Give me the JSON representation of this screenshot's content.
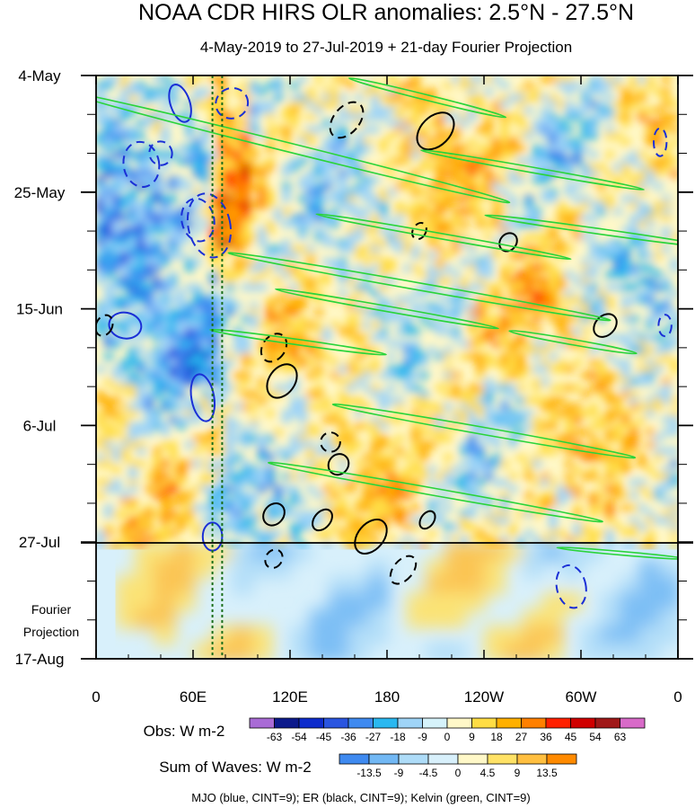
{
  "chart_data": {
    "type": "heatmap",
    "title": "NOAA CDR HIRS OLR anomalies: 2.5°N - 27.5°N",
    "subtitle": "4-May-2019 to 27-Jul-2019 + 21-day Fourier Projection",
    "x_ticks": [
      "0",
      "60E",
      "120E",
      "180",
      "120W",
      "60W",
      "0"
    ],
    "x_tick_lon": [
      0,
      60,
      120,
      180,
      240,
      300,
      360
    ],
    "y_ticks": [
      "4-May",
      "25-May",
      "15-Jun",
      "6-Jul",
      "27-Jul",
      "17-Aug"
    ],
    "y_tick_day": [
      0,
      21,
      42,
      63,
      84,
      105
    ],
    "obs_end_day": 84,
    "projection_label_1": "Fourier",
    "projection_label_2": "Projection",
    "obs_legend": {
      "label": "Obs: W m-2",
      "levels": [
        "-63",
        "-54",
        "-45",
        "-36",
        "-27",
        "-18",
        "-9",
        "0",
        "9",
        "18",
        "27",
        "36",
        "45",
        "54",
        "63"
      ],
      "colors": [
        "#a96bd6",
        "#0c1a8c",
        "#0e2ccc",
        "#2a55e0",
        "#3f8af0",
        "#2ab8f0",
        "#9fd4f7",
        "#d6f3fb",
        "#fff8c8",
        "#ffdd44",
        "#ffb000",
        "#ff8000",
        "#ff2000",
        "#d00000",
        "#a01818",
        "#d86ac8"
      ]
    },
    "waves_legend": {
      "label": "Sum of Waves: W m-2",
      "levels": [
        "-13.5",
        "-9",
        "-4.5",
        "0",
        "4.5",
        "9",
        "13.5"
      ],
      "colors": [
        "#3f8af0",
        "#72b8f4",
        "#aedcf8",
        "#d8f0fb",
        "#fff8c8",
        "#ffe266",
        "#ffbf40",
        "#ff8a00"
      ]
    },
    "footnote": "MJO (blue, CINT=9); ER (black, CINT=9); Kelvin (green, CINT=9)",
    "reference_lon": [
      72,
      78
    ],
    "contours": [
      {
        "wave": "MJO",
        "sign": "neg",
        "lon": 28,
        "day": 16,
        "a": 11,
        "b": 42,
        "rot": -10
      },
      {
        "wave": "MJO",
        "sign": "neg",
        "lon": 63,
        "day": 26,
        "a": 10,
        "b": 40,
        "rot": -12
      },
      {
        "wave": "MJO",
        "sign": "neg",
        "lon": 70,
        "day": 27,
        "a": 13,
        "b": 60,
        "rot": -12
      },
      {
        "wave": "MJO",
        "sign": "neg",
        "lon": 40,
        "day": 14,
        "a": 7,
        "b": 22,
        "rot": -15
      },
      {
        "wave": "MJO",
        "sign": "neg",
        "lon": 84,
        "day": 5,
        "a": 10,
        "b": 28,
        "rot": -18
      },
      {
        "wave": "MJO",
        "sign": "neg",
        "lon": 349,
        "day": 12,
        "a": 4,
        "b": 26,
        "rot": 0
      },
      {
        "wave": "MJO",
        "sign": "neg",
        "lon": 352,
        "day": 45,
        "a": 4,
        "b": 20,
        "rot": 0
      },
      {
        "wave": "MJO",
        "sign": "neg",
        "lon": 294,
        "day": 92,
        "a": 9,
        "b": 40,
        "rot": -12
      },
      {
        "wave": "MJO",
        "sign": "pos",
        "lon": 52,
        "day": 5,
        "a": 6,
        "b": 36,
        "rot": -18
      },
      {
        "wave": "MJO",
        "sign": "pos",
        "lon": 66,
        "day": 58,
        "a": 7,
        "b": 44,
        "rot": -10
      },
      {
        "wave": "MJO",
        "sign": "pos",
        "lon": 18,
        "day": 45,
        "a": 10,
        "b": 24,
        "rot": 10
      },
      {
        "wave": "MJO",
        "sign": "pos",
        "lon": 72,
        "day": 83,
        "a": 6,
        "b": 26,
        "rot": 0
      },
      {
        "wave": "ER",
        "sign": "neg",
        "lon": 155,
        "day": 8,
        "a": 8,
        "b": 38,
        "rot": 40
      },
      {
        "wave": "ER",
        "sign": "neg",
        "lon": 110,
        "day": 49,
        "a": 7,
        "b": 28,
        "rot": 35
      },
      {
        "wave": "ER",
        "sign": "neg",
        "lon": 145,
        "day": 66,
        "a": 6,
        "b": 18,
        "rot": 35
      },
      {
        "wave": "ER",
        "sign": "neg",
        "lon": 110,
        "day": 87,
        "a": 5,
        "b": 18,
        "rot": 35
      },
      {
        "wave": "ER",
        "sign": "neg",
        "lon": 190,
        "day": 89,
        "a": 6,
        "b": 30,
        "rot": 40
      },
      {
        "wave": "ER",
        "sign": "neg",
        "lon": 200,
        "day": 28,
        "a": 4,
        "b": 16,
        "rot": 30
      },
      {
        "wave": "ER",
        "sign": "neg",
        "lon": 5,
        "day": 45,
        "a": 5,
        "b": 20,
        "rot": 25
      },
      {
        "wave": "ER",
        "sign": "pos",
        "lon": 210,
        "day": 10,
        "a": 9,
        "b": 40,
        "rot": 45
      },
      {
        "wave": "ER",
        "sign": "pos",
        "lon": 115,
        "day": 55,
        "a": 8,
        "b": 34,
        "rot": 35
      },
      {
        "wave": "ER",
        "sign": "pos",
        "lon": 150,
        "day": 70,
        "a": 6,
        "b": 20,
        "rot": 40
      },
      {
        "wave": "ER",
        "sign": "pos",
        "lon": 110,
        "day": 79,
        "a": 6,
        "b": 22,
        "rot": 40
      },
      {
        "wave": "ER",
        "sign": "pos",
        "lon": 170,
        "day": 83,
        "a": 8,
        "b": 36,
        "rot": 40
      },
      {
        "wave": "ER",
        "sign": "pos",
        "lon": 255,
        "day": 30,
        "a": 5,
        "b": 18,
        "rot": 40
      },
      {
        "wave": "ER",
        "sign": "pos",
        "lon": 315,
        "day": 45,
        "a": 6,
        "b": 24,
        "rot": 45
      },
      {
        "wave": "ER",
        "sign": "pos",
        "lon": 140,
        "day": 80,
        "a": 5,
        "b": 22,
        "rot": 40
      },
      {
        "wave": "ER",
        "sign": "pos",
        "lon": 205,
        "day": 80,
        "a": 4,
        "b": 18,
        "rot": 35
      },
      {
        "wave": "Kelvin",
        "lon": 120,
        "day": 13,
        "a": 140,
        "b": 5,
        "rot": 14
      },
      {
        "wave": "Kelvin",
        "lon": 205,
        "day": 4,
        "a": 50,
        "b": 3,
        "rot": 14
      },
      {
        "wave": "Kelvin",
        "lon": 270,
        "day": 17,
        "a": 70,
        "b": 3,
        "rot": 10
      },
      {
        "wave": "Kelvin",
        "lon": 215,
        "day": 29,
        "a": 80,
        "b": 3,
        "rot": 10
      },
      {
        "wave": "Kelvin",
        "lon": 310,
        "day": 28,
        "a": 70,
        "b": 3,
        "rot": 8
      },
      {
        "wave": "Kelvin",
        "lon": 200,
        "day": 38,
        "a": 120,
        "b": 4,
        "rot": 10
      },
      {
        "wave": "Kelvin",
        "lon": 180,
        "day": 42,
        "a": 70,
        "b": 3,
        "rot": 10
      },
      {
        "wave": "Kelvin",
        "lon": 125,
        "day": 48,
        "a": 55,
        "b": 3,
        "rot": 8
      },
      {
        "wave": "Kelvin",
        "lon": 240,
        "day": 64,
        "a": 95,
        "b": 4,
        "rot": 10
      },
      {
        "wave": "Kelvin",
        "lon": 210,
        "day": 75,
        "a": 105,
        "b": 4,
        "rot": 10
      },
      {
        "wave": "Kelvin",
        "lon": 325,
        "day": 86,
        "a": 40,
        "b": 2,
        "rot": 5
      },
      {
        "wave": "Kelvin",
        "lon": 295,
        "day": 48,
        "a": 40,
        "b": 3,
        "rot": 10
      }
    ]
  }
}
